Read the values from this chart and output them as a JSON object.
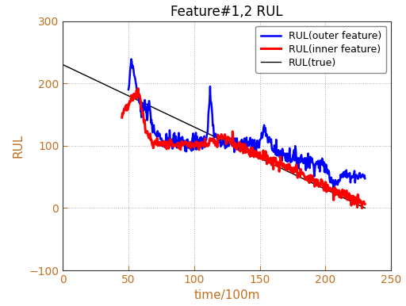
{
  "title": "Feature#1,2 RUL",
  "xlabel": "time/100m",
  "ylabel": "RUL",
  "xlim": [
    0,
    250
  ],
  "ylim": [
    -100,
    300
  ],
  "xticks": [
    0,
    50,
    100,
    150,
    200,
    250
  ],
  "yticks": [
    -100,
    0,
    100,
    200,
    300
  ],
  "true_line": {
    "x": [
      0,
      230
    ],
    "y": [
      230,
      0
    ],
    "color": "#000000",
    "lw": 1.0
  },
  "legend": [
    {
      "label": "RUL(outer feature)",
      "color": "#0000FF",
      "lw": 1.8
    },
    {
      "label": "RUL(inner feature)",
      "color": "#FF0000",
      "lw": 2.2
    },
    {
      "label": "RUL(true)",
      "color": "#000000",
      "lw": 1.0
    }
  ],
  "tick_color": "#c07020",
  "label_color": "#c07020",
  "grid_color": "#aaaaaa",
  "bg_color": "#ffffff",
  "title_fontsize": 12,
  "label_fontsize": 11,
  "tick_fontsize": 10,
  "legend_fontsize": 9
}
